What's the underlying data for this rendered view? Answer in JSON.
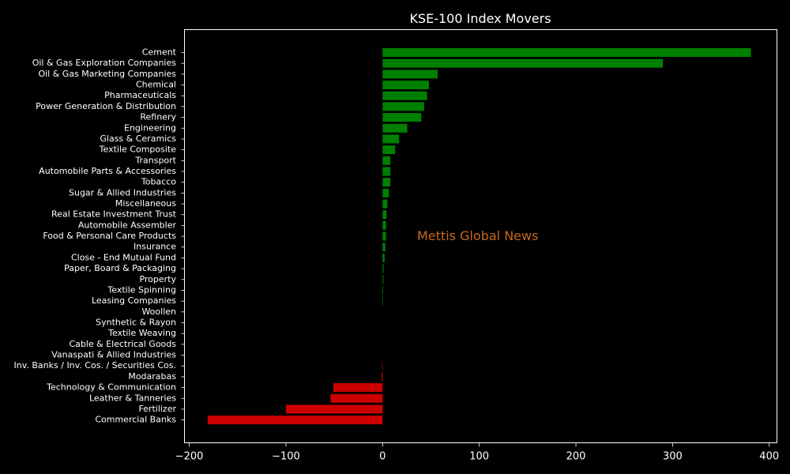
{
  "chart_data": {
    "type": "bar",
    "orientation": "horizontal",
    "title": "KSE-100 Index Movers",
    "xlabel": "",
    "ylabel": "",
    "xlim": [
      -205,
      408
    ],
    "xticks": [
      -200,
      -100,
      0,
      100,
      200,
      300,
      400
    ],
    "xtick_labels": [
      "−200",
      "−100",
      "0",
      "100",
      "200",
      "300",
      "400"
    ],
    "grid": false,
    "positive_color": "#008000",
    "negative_color": "#cc0000",
    "background": "#000000",
    "watermark": "Mettis Global News",
    "categories": [
      "Cement",
      "Oil & Gas Exploration Companies",
      "Oil & Gas Marketing Companies",
      "Chemical",
      "Pharmaceuticals",
      "Power Generation & Distribution",
      "Refinery",
      "Engineering",
      "Glass & Ceramics",
      "Textile Composite",
      "Transport",
      "Automobile Parts & Accessories",
      "Tobacco",
      "Sugar & Allied Industries",
      "Miscellaneous",
      "Real Estate Investment Trust",
      "Automobile Assembler",
      "Food & Personal Care Products",
      "Insurance",
      "Close - End Mutual Fund",
      "Paper, Board & Packaging",
      "Property",
      "Textile Spinning",
      "Leasing Companies",
      "Woollen",
      "Synthetic & Rayon",
      "Textile Weaving",
      "Cable & Electrical Goods",
      "Vanaspati & Allied Industries",
      "Inv. Banks / Inv. Cos. / Securities Cos.",
      "Modarabas",
      "Technology & Communication",
      "Leather & Tanneries",
      "Fertilizer",
      "Commercial Banks"
    ],
    "values": [
      381,
      290,
      57,
      48,
      46,
      43,
      40,
      25.5,
      17,
      13,
      8,
      8,
      8,
      6.5,
      5,
      4,
      3.5,
      3.5,
      2.8,
      2,
      1,
      0.8,
      0.6,
      0.5,
      0,
      0,
      0,
      0,
      0,
      -0.5,
      -1,
      -51,
      -54,
      -100,
      -181
    ]
  }
}
